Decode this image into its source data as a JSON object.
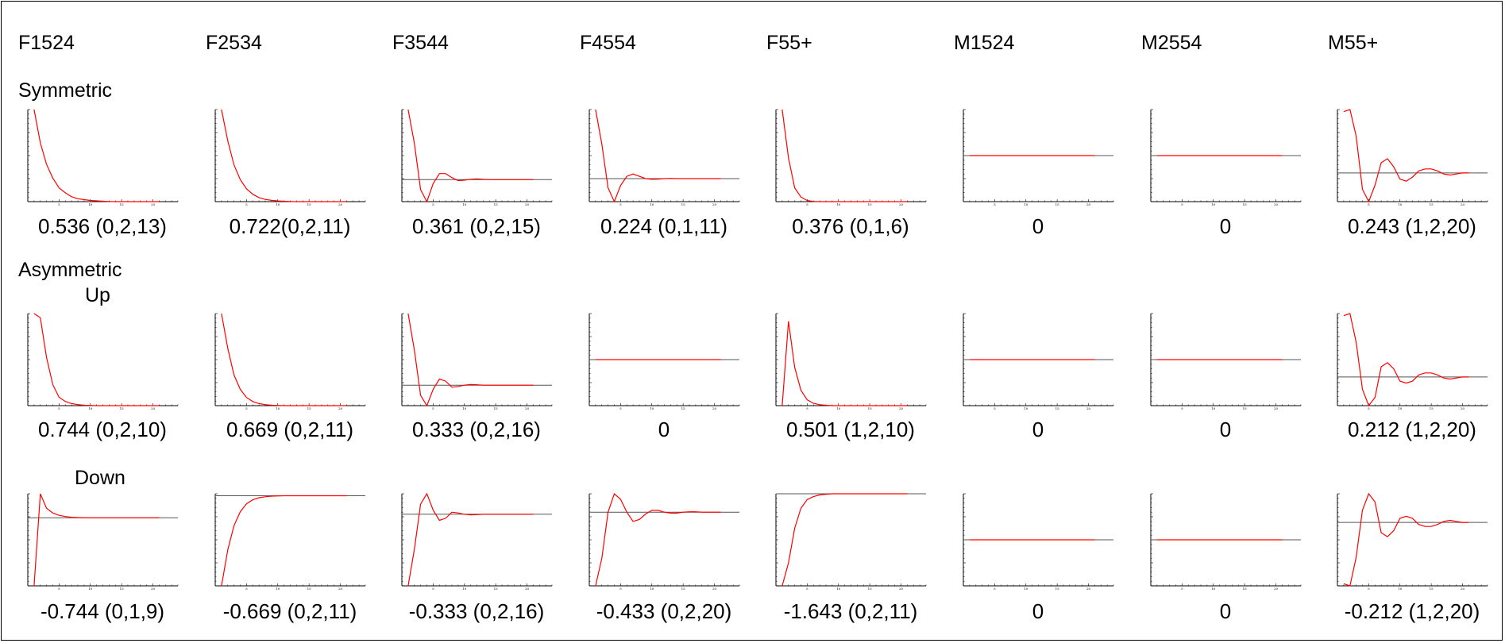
{
  "columns": [
    "F1524",
    "F2534",
    "F3544",
    "F4554",
    "F55+",
    "M1524",
    "M2554",
    "M55+"
  ],
  "row_labels": {
    "symmetric": "Symmetric",
    "asymmetric": "Asymmetric",
    "up": "Up",
    "down": "Down"
  },
  "colors": {
    "response": "#ff0000",
    "baseline": "#555555",
    "axis": "#000000"
  },
  "chart_data": [
    {
      "type": "line",
      "row": "Symmetric",
      "column": "F1524",
      "caption": "0.536 (0,2,13)",
      "x": [
        1,
        2,
        3,
        4,
        5,
        6,
        7,
        8,
        9,
        10,
        11,
        12,
        13,
        14,
        15,
        16,
        17,
        18,
        19,
        20,
        21
      ],
      "values": [
        0.47,
        0.3,
        0.19,
        0.12,
        0.07,
        0.045,
        0.025,
        0.015,
        0.01,
        0.006,
        0.004,
        0.002,
        0.001,
        0,
        0,
        0,
        0,
        0,
        0,
        0,
        0
      ],
      "xlim": [
        0,
        24
      ],
      "ylim": [
        0,
        0.47
      ]
    },
    {
      "type": "line",
      "row": "Symmetric",
      "column": "F2534",
      "caption": "0.722(0,2,11)",
      "x": [
        1,
        2,
        3,
        4,
        5,
        6,
        7,
        8,
        9,
        10,
        11,
        12,
        13,
        14,
        15,
        16,
        17,
        18,
        19,
        20,
        21
      ],
      "values": [
        0.5,
        0.33,
        0.2,
        0.12,
        0.07,
        0.04,
        0.022,
        0.012,
        0.007,
        0.004,
        0.002,
        0.001,
        0,
        0,
        0,
        0,
        0,
        0,
        0,
        0,
        0
      ],
      "xlim": [
        0,
        24
      ],
      "ylim": [
        0,
        0.5
      ]
    },
    {
      "type": "line",
      "row": "Symmetric",
      "column": "F3544",
      "caption": "0.361 (0,2,15)",
      "x": [
        1,
        2,
        3,
        4,
        5,
        6,
        7,
        8,
        9,
        10,
        11,
        12,
        13,
        14,
        15,
        16,
        17,
        18,
        19,
        20,
        21
      ],
      "values": [
        0.35,
        0.18,
        -0.05,
        -0.11,
        -0.02,
        0.03,
        0.03,
        0.01,
        -0.005,
        -0.003,
        0.002,
        0.004,
        0.002,
        0,
        0,
        0,
        0,
        0,
        0,
        0,
        0
      ],
      "xlim": [
        0,
        24
      ],
      "ylim": [
        -0.11,
        0.35
      ]
    },
    {
      "type": "line",
      "row": "Symmetric",
      "column": "F4554",
      "caption": "0.224 (0,1,11)",
      "x": [
        1,
        2,
        3,
        4,
        5,
        6,
        7,
        8,
        9,
        10,
        11,
        12,
        13,
        14,
        15,
        16,
        17,
        18,
        19,
        20,
        21
      ],
      "values": [
        0.3,
        0.15,
        -0.04,
        -0.1,
        -0.03,
        0.01,
        0.02,
        0.01,
        0,
        -0.003,
        -0.002,
        0,
        0.001,
        0,
        0,
        0,
        0,
        0,
        0,
        0,
        0
      ],
      "xlim": [
        0,
        24
      ],
      "ylim": [
        -0.1,
        0.3
      ]
    },
    {
      "type": "line",
      "row": "Symmetric",
      "column": "F55+",
      "caption": "0.376 (0,1,6)",
      "x": [
        1,
        2,
        3,
        4,
        5,
        6,
        7,
        8,
        9,
        10,
        11,
        12,
        13,
        14,
        15,
        16,
        17,
        18,
        19,
        20,
        21
      ],
      "values": [
        0.4,
        0.19,
        0.06,
        0.02,
        0.005,
        0.001,
        0,
        0,
        0,
        0,
        0,
        0,
        0,
        0,
        0,
        0,
        0,
        0,
        0,
        0,
        0
      ],
      "xlim": [
        0,
        24
      ],
      "ylim": [
        0,
        0.4
      ]
    },
    {
      "type": "line",
      "row": "Symmetric",
      "column": "M1524",
      "caption": "0",
      "x": [
        1,
        21
      ],
      "values": [
        0,
        0
      ],
      "xlim": [
        0,
        24
      ],
      "ylim": [
        -1,
        1
      ]
    },
    {
      "type": "line",
      "row": "Symmetric",
      "column": "M2554",
      "caption": "0",
      "x": [
        1,
        21
      ],
      "values": [
        0,
        0
      ],
      "xlim": [
        0,
        24
      ],
      "ylim": [
        -1,
        1
      ]
    },
    {
      "type": "line",
      "row": "Symmetric",
      "column": "M55+",
      "caption": "0.243 (1,2,20)",
      "x": [
        1,
        2,
        3,
        4,
        5,
        6,
        7,
        8,
        9,
        10,
        11,
        12,
        13,
        14,
        15,
        16,
        17,
        18,
        19,
        20,
        21
      ],
      "values": [
        0.3,
        0.31,
        0.18,
        -0.08,
        -0.14,
        -0.06,
        0.05,
        0.07,
        0.03,
        -0.03,
        -0.04,
        -0.02,
        0.01,
        0.02,
        0.02,
        0.01,
        -0.005,
        -0.01,
        -0.005,
        0,
        0
      ],
      "xlim": [
        0,
        24
      ],
      "ylim": [
        -0.14,
        0.31
      ]
    },
    {
      "type": "line",
      "row": "Asymmetric Up",
      "column": "F1524",
      "caption": "0.744 (0,2,10)",
      "x": [
        1,
        2,
        3,
        4,
        5,
        6,
        7,
        8,
        9,
        10,
        11,
        12,
        13,
        14,
        15,
        16,
        17,
        18,
        19,
        20,
        21
      ],
      "values": [
        0.44,
        0.42,
        0.23,
        0.1,
        0.04,
        0.02,
        0.01,
        0.005,
        0.002,
        0.001,
        0,
        0,
        0,
        0,
        0,
        0,
        0,
        0,
        0,
        0,
        0
      ],
      "xlim": [
        0,
        24
      ],
      "ylim": [
        0,
        0.44
      ]
    },
    {
      "type": "line",
      "row": "Asymmetric Up",
      "column": "F2534",
      "caption": "0.669 (0,2,11)",
      "x": [
        1,
        2,
        3,
        4,
        5,
        6,
        7,
        8,
        9,
        10,
        11,
        12,
        13,
        14,
        15,
        16,
        17,
        18,
        19,
        20,
        21
      ],
      "values": [
        0.45,
        0.28,
        0.15,
        0.08,
        0.04,
        0.02,
        0.01,
        0.005,
        0.002,
        0.001,
        0,
        0,
        0,
        0,
        0,
        0,
        0,
        0,
        0,
        0,
        0
      ],
      "xlim": [
        0,
        24
      ],
      "ylim": [
        0,
        0.45
      ]
    },
    {
      "type": "line",
      "row": "Asymmetric Up",
      "column": "F3544",
      "caption": "0.333 (0,2,16)",
      "x": [
        1,
        2,
        3,
        4,
        5,
        6,
        7,
        8,
        9,
        10,
        11,
        12,
        13,
        14,
        15,
        16,
        17,
        18,
        19,
        20,
        21
      ],
      "values": [
        0.35,
        0.17,
        -0.05,
        -0.1,
        -0.02,
        0.03,
        0.02,
        -0.01,
        -0.006,
        0,
        0.003,
        0.002,
        0,
        0,
        0,
        0,
        0,
        0,
        0,
        0,
        0
      ],
      "xlim": [
        0,
        24
      ],
      "ylim": [
        -0.1,
        0.35
      ]
    },
    {
      "type": "line",
      "row": "Asymmetric Up",
      "column": "F4554",
      "caption": "0",
      "x": [
        1,
        21
      ],
      "values": [
        0,
        0
      ],
      "xlim": [
        0,
        24
      ],
      "ylim": [
        -1,
        1
      ]
    },
    {
      "type": "line",
      "row": "Asymmetric Up",
      "column": "F55+",
      "caption": "0.501 (1,2,10)",
      "x": [
        1,
        2,
        3,
        4,
        5,
        6,
        7,
        8,
        9,
        10,
        11,
        12,
        13,
        14,
        15,
        16,
        17,
        18,
        19,
        20,
        21
      ],
      "values": [
        0,
        0.44,
        0.2,
        0.08,
        0.03,
        0.012,
        0.005,
        0.002,
        0,
        0,
        0,
        0,
        0,
        0,
        0,
        0,
        0,
        0,
        0,
        0,
        0
      ],
      "xlim": [
        0,
        24
      ],
      "ylim": [
        0,
        0.48
      ]
    },
    {
      "type": "line",
      "row": "Asymmetric Up",
      "column": "M1524",
      "caption": "0",
      "x": [
        1,
        21
      ],
      "values": [
        0,
        0
      ],
      "xlim": [
        0,
        24
      ],
      "ylim": [
        -1,
        1
      ]
    },
    {
      "type": "line",
      "row": "Asymmetric Up",
      "column": "M2554",
      "caption": "0",
      "x": [
        1,
        21
      ],
      "values": [
        0,
        0
      ],
      "xlim": [
        0,
        24
      ],
      "ylim": [
        -1,
        1
      ]
    },
    {
      "type": "line",
      "row": "Asymmetric Up",
      "column": "M55+",
      "caption": "0.212 (1,2,20)",
      "x": [
        1,
        2,
        3,
        4,
        5,
        6,
        7,
        8,
        9,
        10,
        11,
        12,
        13,
        14,
        15,
        16,
        17,
        18,
        19,
        20,
        21
      ],
      "values": [
        0.3,
        0.31,
        0.17,
        -0.06,
        -0.14,
        -0.1,
        0.05,
        0.07,
        0.04,
        -0.02,
        -0.03,
        -0.02,
        0.01,
        0.02,
        0.02,
        0.01,
        -0.005,
        -0.01,
        -0.005,
        0,
        0
      ],
      "xlim": [
        0,
        24
      ],
      "ylim": [
        -0.14,
        0.31
      ]
    },
    {
      "type": "line",
      "row": "Down",
      "column": "F1524",
      "caption": "-0.744 (0,1,9)",
      "x": [
        1,
        2,
        3,
        4,
        5,
        6,
        7,
        8,
        9,
        10,
        11,
        12,
        13,
        14,
        15,
        16,
        17,
        18,
        19,
        20,
        21
      ],
      "values": [
        -0.85,
        0.3,
        0.12,
        0.06,
        0.03,
        0.015,
        0.007,
        0.003,
        0.001,
        0,
        0,
        0,
        0,
        0,
        0,
        0,
        0,
        0,
        0,
        0,
        0
      ],
      "xlim": [
        0,
        24
      ],
      "ylim": [
        -0.85,
        0.3
      ]
    },
    {
      "type": "line",
      "row": "Down",
      "column": "F2534",
      "caption": "-0.669 (0,2,11)",
      "x": [
        1,
        2,
        3,
        4,
        5,
        6,
        7,
        8,
        9,
        10,
        11,
        12,
        13,
        14,
        15,
        16,
        17,
        18,
        19,
        20,
        21
      ],
      "values": [
        -0.45,
        -0.27,
        -0.15,
        -0.08,
        -0.04,
        -0.02,
        -0.01,
        -0.005,
        -0.002,
        -0.001,
        0,
        0,
        0,
        0,
        0,
        0,
        0,
        0,
        0,
        0,
        0
      ],
      "xlim": [
        0,
        24
      ],
      "ylim": [
        -0.45,
        0.01
      ]
    },
    {
      "type": "line",
      "row": "Down",
      "column": "F3544",
      "caption": "-0.333 (0,2,16)",
      "x": [
        1,
        2,
        3,
        4,
        5,
        6,
        7,
        8,
        9,
        10,
        11,
        12,
        13,
        14,
        15,
        16,
        17,
        18,
        19,
        20,
        21
      ],
      "values": [
        -0.35,
        -0.17,
        0.05,
        0.1,
        0.02,
        -0.03,
        -0.02,
        0.01,
        0.006,
        0,
        -0.003,
        -0.002,
        0,
        0,
        0,
        0,
        0,
        0,
        0,
        0,
        0
      ],
      "xlim": [
        0,
        24
      ],
      "ylim": [
        -0.35,
        0.1
      ]
    },
    {
      "type": "line",
      "row": "Down",
      "column": "F4554",
      "caption": "-0.433 (0,2,20)",
      "x": [
        1,
        2,
        3,
        4,
        5,
        6,
        7,
        8,
        9,
        10,
        11,
        12,
        13,
        14,
        15,
        16,
        17,
        18,
        19,
        20,
        21
      ],
      "values": [
        -0.4,
        -0.25,
        0,
        0.1,
        0.07,
        0,
        -0.05,
        -0.04,
        -0.01,
        0.01,
        0.01,
        0,
        -0.005,
        -0.005,
        0,
        0.002,
        0.002,
        0,
        0,
        0,
        0
      ],
      "xlim": [
        0,
        24
      ],
      "ylim": [
        -0.4,
        0.1
      ]
    },
    {
      "type": "line",
      "row": "Down",
      "column": "F55+",
      "caption": "-1.643 (0,2,11)",
      "x": [
        1,
        2,
        3,
        4,
        5,
        6,
        7,
        8,
        9,
        10,
        11,
        12,
        13,
        14,
        15,
        16,
        17,
        18,
        19,
        20,
        21
      ],
      "values": [
        -1.6,
        -1.2,
        -0.6,
        -0.25,
        -0.1,
        -0.05,
        -0.02,
        -0.01,
        0,
        0,
        0,
        0,
        0,
        0,
        0,
        0,
        0,
        0,
        0,
        0,
        0
      ],
      "xlim": [
        0,
        24
      ],
      "ylim": [
        -1.6,
        0
      ]
    },
    {
      "type": "line",
      "row": "Down",
      "column": "M1524",
      "caption": "0",
      "x": [
        1,
        21
      ],
      "values": [
        0,
        0
      ],
      "xlim": [
        0,
        24
      ],
      "ylim": [
        -1,
        1
      ]
    },
    {
      "type": "line",
      "row": "Down",
      "column": "M2554",
      "caption": "0",
      "x": [
        1,
        21
      ],
      "values": [
        0,
        0
      ],
      "xlim": [
        0,
        24
      ],
      "ylim": [
        -1,
        1
      ]
    },
    {
      "type": "line",
      "row": "Down",
      "column": "M55+",
      "caption": "-0.212 (1,2,20)",
      "x": [
        1,
        2,
        3,
        4,
        5,
        6,
        7,
        8,
        9,
        10,
        11,
        12,
        13,
        14,
        15,
        16,
        17,
        18,
        19,
        20,
        21
      ],
      "values": [
        -0.3,
        -0.31,
        -0.17,
        0.06,
        0.14,
        0.1,
        -0.05,
        -0.07,
        -0.04,
        0.02,
        0.03,
        0.02,
        -0.01,
        -0.02,
        -0.02,
        -0.01,
        0.005,
        0.01,
        0.005,
        0,
        0
      ],
      "xlim": [
        0,
        24
      ],
      "ylim": [
        -0.31,
        0.14
      ]
    }
  ]
}
